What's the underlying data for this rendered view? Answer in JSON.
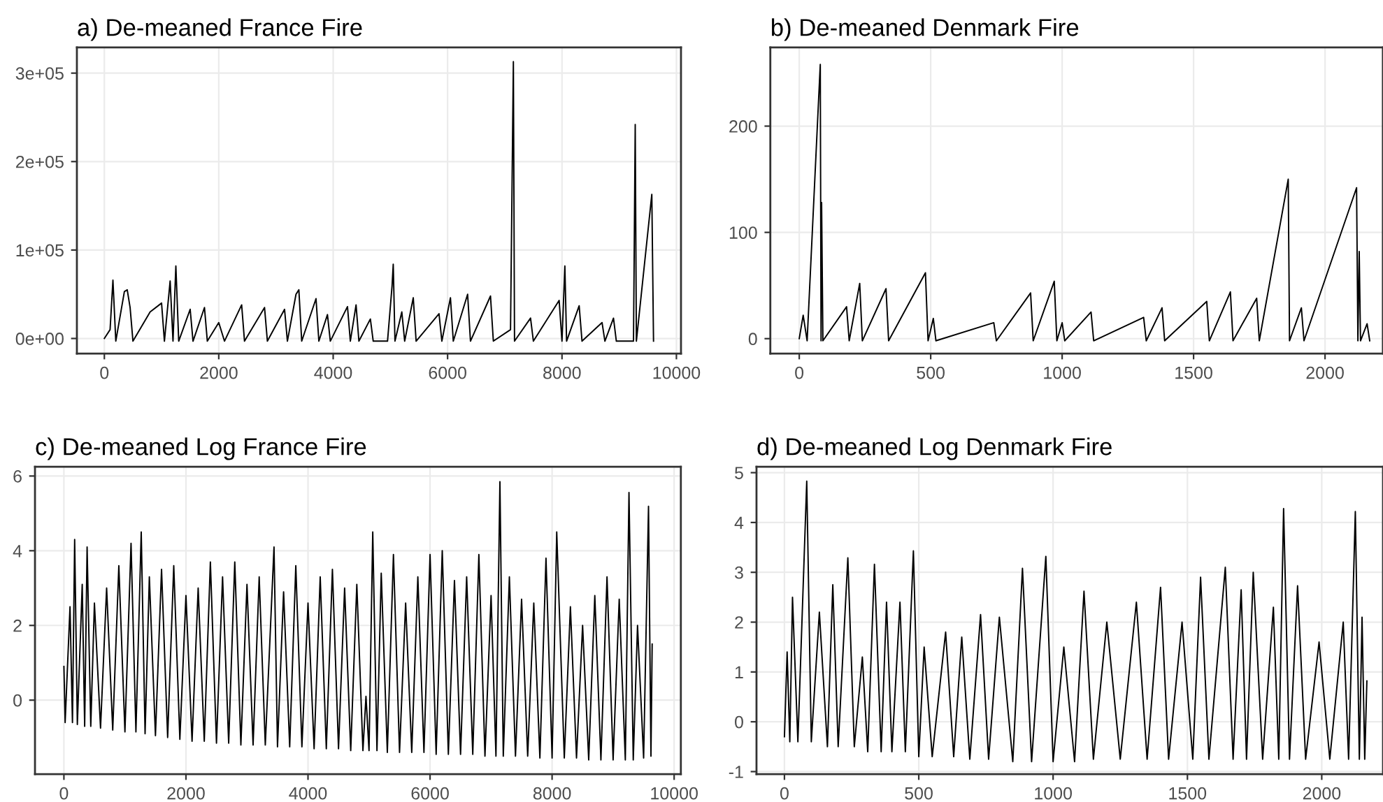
{
  "chart_data": [
    {
      "type": "line",
      "title": "a) De-meaned France Fire",
      "color": "#000000",
      "grid": true,
      "x": [
        0,
        100,
        150,
        200,
        350,
        400,
        450,
        500,
        800,
        1000,
        1050,
        1150,
        1200,
        1250,
        1300,
        1500,
        1550,
        1750,
        1800,
        2000,
        2100,
        2400,
        2450,
        2800,
        2850,
        3150,
        3200,
        3350,
        3400,
        3450,
        3700,
        3750,
        3900,
        3950,
        4250,
        4300,
        4400,
        4450,
        4650,
        4700,
        4950,
        5030,
        5050,
        5080,
        5200,
        5250,
        5400,
        5450,
        5850,
        5900,
        6050,
        6100,
        6350,
        6400,
        6750,
        6800,
        7100,
        7150,
        7170,
        7450,
        7500,
        7950,
        8000,
        8050,
        8080,
        8300,
        8350,
        8700,
        8750,
        8900,
        8950,
        9250,
        9280,
        9300,
        9570,
        9600
      ],
      "values": [
        0,
        10000,
        66000,
        -3000,
        53000,
        55000,
        35000,
        -3000,
        30000,
        40000,
        -3000,
        65000,
        -3000,
        82000,
        -3000,
        33000,
        -3000,
        35000,
        -3000,
        18000,
        -3000,
        38000,
        -3000,
        35000,
        -3000,
        33000,
        -3000,
        50000,
        55000,
        -3000,
        45000,
        -3000,
        27000,
        -3000,
        36000,
        -3000,
        38000,
        -3000,
        22000,
        -3000,
        -3000,
        60000,
        84000,
        -3000,
        30000,
        -3000,
        46000,
        -3000,
        28000,
        -3000,
        46000,
        -3000,
        50000,
        -3000,
        48000,
        -3000,
        10000,
        313000,
        -3000,
        23000,
        -3000,
        43000,
        -3000,
        82000,
        -3000,
        37000,
        -3000,
        18000,
        -3000,
        23000,
        -3000,
        -3000,
        242000,
        -3000,
        163000,
        -3000
      ],
      "xlim": [
        -480,
        10080
      ],
      "xticks": [
        0,
        2000,
        4000,
        6000,
        8000,
        10000
      ],
      "ylim": [
        -17000,
        329000
      ],
      "yticks": [
        {
          "value": 0,
          "label": "0e+00"
        },
        {
          "value": 100000,
          "label": "1e+05"
        },
        {
          "value": 200000,
          "label": "2e+05"
        },
        {
          "value": 300000,
          "label": "3e+05"
        }
      ]
    },
    {
      "type": "line",
      "title": "b) De-meaned Denmark Fire",
      "color": "#000000",
      "grid": true,
      "x": [
        0,
        15,
        30,
        80,
        83,
        85,
        90,
        180,
        190,
        230,
        240,
        330,
        340,
        480,
        490,
        510,
        520,
        740,
        750,
        880,
        890,
        970,
        980,
        1000,
        1010,
        1110,
        1120,
        1310,
        1320,
        1380,
        1390,
        1550,
        1560,
        1640,
        1650,
        1740,
        1750,
        1860,
        1865,
        1910,
        1920,
        2120,
        2125,
        2130,
        2135,
        2160,
        2170
      ],
      "values": [
        0,
        22,
        -2,
        258,
        -2,
        128,
        -2,
        30,
        -2,
        52,
        -2,
        47,
        -2,
        62,
        -2,
        19,
        -2,
        15,
        -2,
        43,
        -2,
        54,
        -2,
        15,
        -2,
        25,
        -2,
        20,
        -2,
        29,
        -2,
        35,
        -2,
        44,
        -2,
        38,
        -2,
        150,
        -2,
        29,
        -2,
        142,
        -2,
        82,
        -2,
        14,
        -2
      ],
      "xlim": [
        -110,
        2220
      ],
      "xticks": [
        0,
        500,
        1000,
        1500,
        2000
      ],
      "ylim": [
        -14,
        274
      ],
      "yticks": [
        0,
        100,
        200
      ]
    },
    {
      "type": "line",
      "title": "c) De-meaned Log France Fire",
      "color": "#000000",
      "grid": true,
      "x": [
        0,
        20,
        100,
        140,
        176,
        220,
        300,
        340,
        380,
        440,
        500,
        600,
        700,
        800,
        900,
        1000,
        1100,
        1180,
        1267,
        1330,
        1400,
        1500,
        1600,
        1700,
        1800,
        1900,
        2000,
        2100,
        2200,
        2300,
        2400,
        2500,
        2600,
        2700,
        2800,
        2900,
        3000,
        3100,
        3200,
        3300,
        3443,
        3500,
        3600,
        3700,
        3800,
        3900,
        4000,
        4100,
        4200,
        4300,
        4400,
        4500,
        4600,
        4700,
        4800,
        4900,
        4950,
        5000,
        5061,
        5130,
        5200,
        5300,
        5400,
        5500,
        5600,
        5700,
        5800,
        5900,
        6000,
        6100,
        6200,
        6300,
        6400,
        6500,
        6600,
        6700,
        6800,
        6900,
        7000,
        7080,
        7145,
        7200,
        7300,
        7400,
        7500,
        7600,
        7700,
        7800,
        7900,
        8000,
        8076,
        8200,
        8300,
        8400,
        8500,
        8600,
        8700,
        8800,
        8900,
        9000,
        9100,
        9200,
        9260,
        9330,
        9400,
        9500,
        9580,
        9620,
        9640
      ],
      "values": [
        0.9,
        -0.6,
        2.5,
        -0.6,
        4.3,
        -0.65,
        3.1,
        -0.7,
        4.1,
        -0.7,
        2.6,
        -0.75,
        3.0,
        -0.8,
        3.6,
        -0.85,
        4.2,
        -0.85,
        4.5,
        -0.9,
        3.3,
        -0.95,
        3.5,
        -1.0,
        3.6,
        -1.05,
        2.8,
        -1.1,
        3.0,
        -1.1,
        3.7,
        -1.15,
        3.3,
        -1.15,
        3.7,
        -1.2,
        3.1,
        -1.2,
        3.3,
        -1.2,
        4.1,
        -1.25,
        2.9,
        -1.25,
        3.6,
        -1.25,
        2.6,
        -1.3,
        3.3,
        -1.3,
        3.5,
        -1.3,
        3.0,
        -1.35,
        3.1,
        -1.35,
        0.1,
        -1.35,
        4.5,
        -1.35,
        3.4,
        -1.4,
        3.9,
        -1.4,
        2.6,
        -1.4,
        3.3,
        -1.4,
        3.9,
        -1.45,
        4.0,
        -1.45,
        3.2,
        -1.45,
        3.3,
        -1.45,
        3.9,
        -1.5,
        2.8,
        -1.5,
        5.85,
        -1.5,
        3.3,
        -1.5,
        2.7,
        -1.5,
        2.6,
        -1.55,
        3.8,
        -1.55,
        4.5,
        -1.55,
        2.5,
        -1.55,
        2.0,
        -1.6,
        2.8,
        -1.6,
        3.3,
        -1.6,
        2.7,
        -1.6,
        5.56,
        -1.6,
        2.0,
        -1.55,
        5.19,
        -1.5,
        1.5
      ],
      "xlim": [
        -474,
        10110
      ],
      "xticks": [
        0,
        2000,
        4000,
        6000,
        8000,
        10000
      ],
      "ylim": [
        -1.98,
        6.25
      ],
      "yticks": [
        0,
        2,
        4,
        6
      ]
    },
    {
      "type": "line",
      "title": "d) De-meaned Log Denmark Fire",
      "color": "#000000",
      "grid": true,
      "x": [
        0,
        10,
        20,
        30,
        50,
        83,
        100,
        130,
        160,
        180,
        200,
        236,
        260,
        290,
        310,
        335,
        360,
        380,
        400,
        430,
        450,
        480,
        500,
        520,
        550,
        600,
        630,
        660,
        690,
        730,
        760,
        800,
        850,
        886,
        920,
        973,
        1000,
        1040,
        1080,
        1115,
        1150,
        1200,
        1250,
        1310,
        1350,
        1400,
        1430,
        1480,
        1520,
        1549,
        1580,
        1641,
        1670,
        1700,
        1720,
        1745,
        1780,
        1820,
        1840,
        1858,
        1880,
        1910,
        1940,
        1990,
        2030,
        2080,
        2100,
        2125,
        2140,
        2150,
        2160,
        2168
      ],
      "values": [
        -0.3,
        1.4,
        -0.4,
        2.5,
        -0.4,
        4.83,
        -0.4,
        2.2,
        -0.5,
        2.75,
        -0.5,
        3.29,
        -0.5,
        1.3,
        -0.6,
        3.16,
        -0.6,
        2.4,
        -0.6,
        2.4,
        -0.6,
        3.43,
        -0.7,
        1.5,
        -0.7,
        1.8,
        -0.7,
        1.7,
        -0.75,
        2.15,
        -0.75,
        2.1,
        -0.8,
        3.08,
        -0.8,
        3.32,
        -0.8,
        1.5,
        -0.8,
        2.62,
        -0.75,
        2.0,
        -0.75,
        2.4,
        -0.75,
        2.7,
        -0.75,
        2.0,
        -0.75,
        2.9,
        -0.75,
        3.1,
        -0.75,
        2.65,
        -0.75,
        3.0,
        -0.75,
        2.3,
        -0.75,
        4.28,
        -0.75,
        2.73,
        -0.75,
        1.6,
        -0.75,
        2.0,
        -0.75,
        4.22,
        -0.75,
        2.1,
        -0.75,
        0.82
      ],
      "xlim": [
        -104,
        2228
      ],
      "xticks": [
        0,
        500,
        1000,
        1500,
        2000
      ],
      "ylim": [
        -1.05,
        5.12
      ],
      "yticks": [
        -1,
        0,
        1,
        2,
        3,
        4,
        5
      ]
    }
  ]
}
